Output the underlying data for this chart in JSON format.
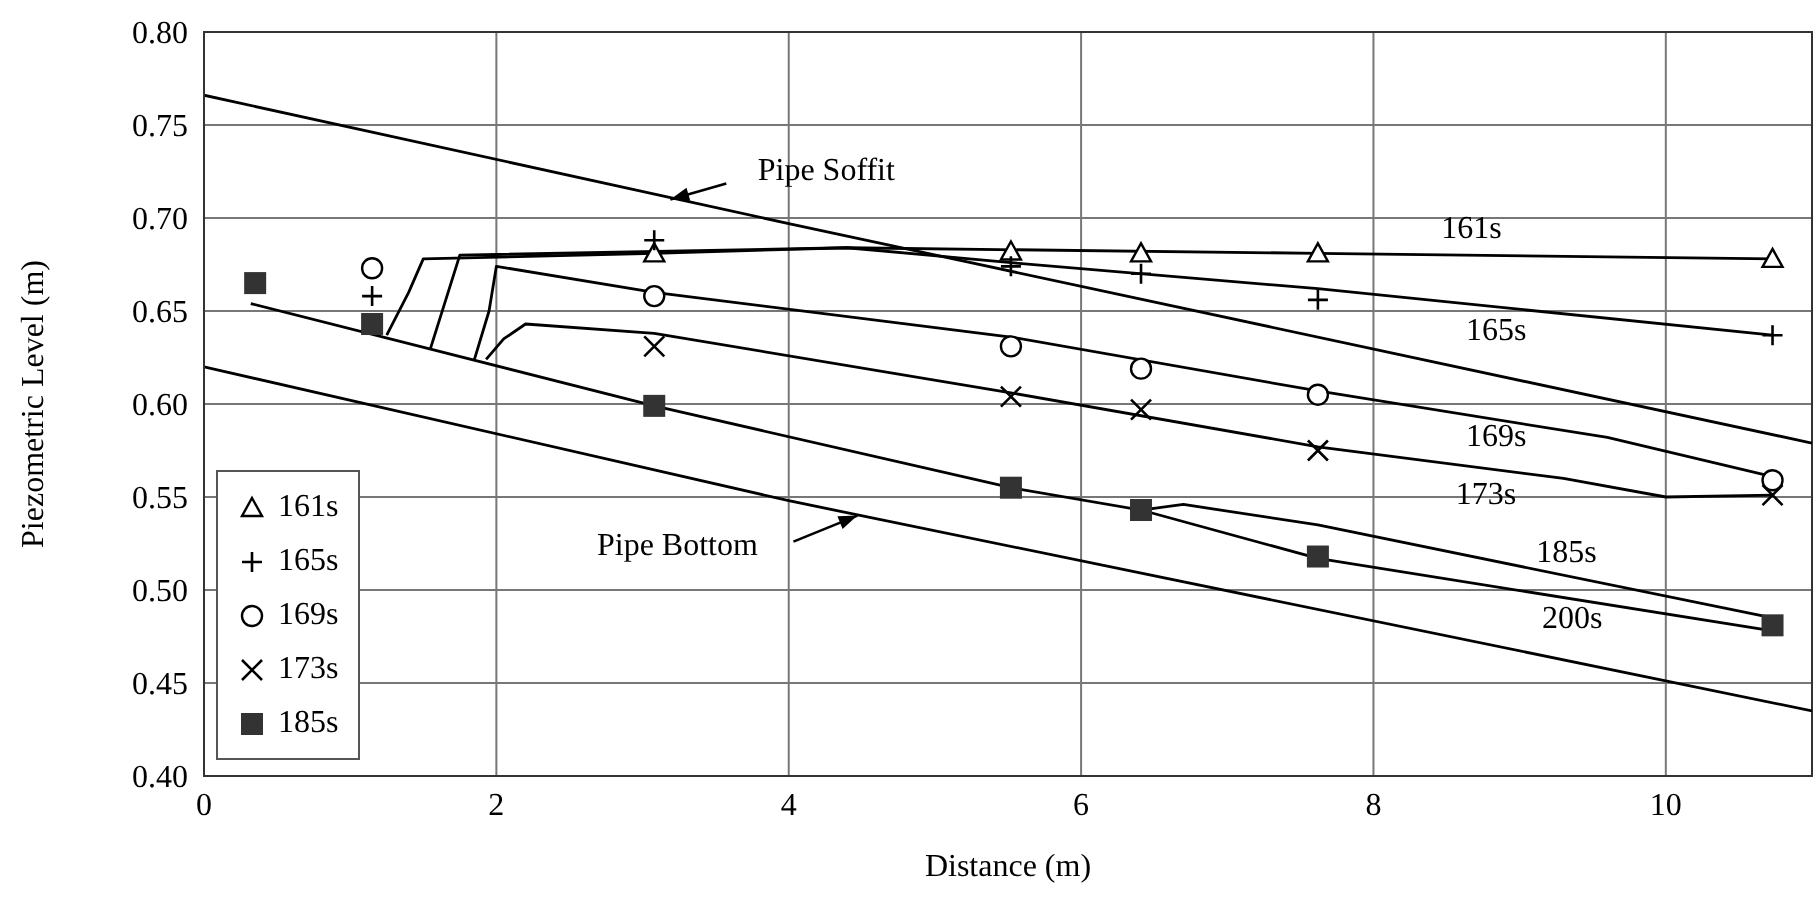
{
  "chart_data": {
    "type": "scatter",
    "xlabel": "Distance (m)",
    "ylabel": "Piezometric Level (m)",
    "xlim": [
      0,
      11
    ],
    "xticks": [
      0,
      2,
      4,
      6,
      8,
      10
    ],
    "ylim": [
      0.4,
      0.8
    ],
    "yticks": [
      {
        "value": 0.4,
        "label": "0.40"
      },
      {
        "value": 0.45,
        "label": "0.45"
      },
      {
        "value": 0.5,
        "label": "0.50"
      },
      {
        "value": 0.55,
        "label": "0.55"
      },
      {
        "value": 0.6,
        "label": "0.60"
      },
      {
        "value": 0.65,
        "label": "0.65"
      },
      {
        "value": 0.7,
        "label": "0.70"
      },
      {
        "value": 0.75,
        "label": "0.75"
      },
      {
        "value": 0.8,
        "label": "0.80"
      }
    ],
    "grid": true,
    "legend": "bottom left",
    "series": [
      {
        "type": "line",
        "color": "#000000",
        "marker": "none",
        "x": [
          0,
          4,
          11
        ],
        "values": [
          0.766,
          0.697,
          0.579
        ]
      },
      {
        "type": "line",
        "color": "#000000",
        "marker": "none",
        "x": [
          0,
          4,
          11
        ],
        "values": [
          0.62,
          0.548,
          0.435
        ]
      },
      {
        "type": "line",
        "color": "#000000",
        "marker": "none",
        "x": [
          1.25,
          1.4,
          1.5,
          3.08,
          4.4,
          7.62,
          10.73
        ],
        "values": [
          0.637,
          0.66,
          0.678,
          0.681,
          0.684,
          0.681,
          0.678
        ]
      },
      {
        "type": "line",
        "color": "#000000",
        "marker": "none",
        "x": [
          1.55,
          1.65,
          1.75,
          4.4,
          5.52,
          7.62,
          10.73
        ],
        "values": [
          0.63,
          0.655,
          0.68,
          0.684,
          0.676,
          0.662,
          0.637
        ]
      },
      {
        "type": "line",
        "color": "#000000",
        "marker": "none",
        "x": [
          1.85,
          1.95,
          2.0,
          3.08,
          5.52,
          7.62,
          9.6,
          10.73
        ],
        "values": [
          0.624,
          0.65,
          0.674,
          0.66,
          0.636,
          0.607,
          0.582,
          0.561
        ]
      },
      {
        "type": "line",
        "color": "#000000",
        "marker": "none",
        "x": [
          1.93,
          2.05,
          2.2,
          3.08,
          5.52,
          7.62,
          9.3,
          10.0,
          10.73
        ],
        "values": [
          0.624,
          0.635,
          0.643,
          0.638,
          0.606,
          0.577,
          0.56,
          0.55,
          0.551
        ]
      },
      {
        "type": "line",
        "color": "#000000",
        "marker": "none",
        "x": [
          6.41,
          6.7,
          7.62,
          10.73
        ],
        "values": [
          0.543,
          0.546,
          0.535,
          0.485
        ]
      },
      {
        "type": "line",
        "color": "#000000",
        "marker": "none",
        "x": [
          0.32,
          3.08,
          5.52,
          6.41,
          7.62,
          10.73
        ],
        "values": [
          0.654,
          0.599,
          0.555,
          0.543,
          0.517,
          0.478
        ]
      },
      {
        "name": "161s",
        "color": "#000000",
        "marker": "triangle",
        "x": [
          3.08,
          5.52,
          6.41,
          7.62,
          10.73
        ],
        "values": [
          0.681,
          0.682,
          0.681,
          0.681,
          0.678
        ]
      },
      {
        "name": "165s",
        "color": "#000000",
        "marker": "plus",
        "x": [
          1.15,
          3.08,
          5.52,
          6.41,
          7.62,
          10.73
        ],
        "values": [
          0.658,
          0.688,
          0.674,
          0.67,
          0.656,
          0.637
        ]
      },
      {
        "name": "169s",
        "color": "#000000",
        "marker": "circle",
        "x": [
          1.15,
          3.08,
          5.52,
          6.41,
          7.62,
          10.73
        ],
        "values": [
          0.673,
          0.658,
          0.631,
          0.619,
          0.605,
          0.559
        ]
      },
      {
        "name": "173s",
        "color": "#000000",
        "marker": "cross",
        "x": [
          3.08,
          5.52,
          6.41,
          7.62,
          10.73
        ],
        "values": [
          0.631,
          0.604,
          0.597,
          0.575,
          0.551
        ]
      },
      {
        "name": "185s",
        "color": "#333333",
        "marker": "square",
        "x": [
          0.35,
          1.15,
          3.08,
          5.52,
          6.41,
          7.62,
          10.73
        ],
        "values": [
          0.665,
          0.643,
          0.599,
          0.555,
          0.543,
          0.518,
          0.481
        ]
      }
    ],
    "annotations": [
      {
        "text": "Pipe Soffit",
        "x": 3.19,
        "y": 0.71
      },
      {
        "text": "Pipe Bottom",
        "x": 4.47,
        "y": 0.54
      },
      {
        "text": "161s",
        "x": 8.67,
        "y": 0.68
      },
      {
        "text": "165s",
        "x": 8.84,
        "y": 0.652
      },
      {
        "text": "169s",
        "x": 8.84,
        "y": 0.592
      },
      {
        "text": "173s",
        "x": 8.77,
        "y": 0.565
      },
      {
        "text": "185s",
        "x": 9.32,
        "y": 0.508
      },
      {
        "text": "200s",
        "x": 9.36,
        "y": 0.495
      }
    ]
  }
}
